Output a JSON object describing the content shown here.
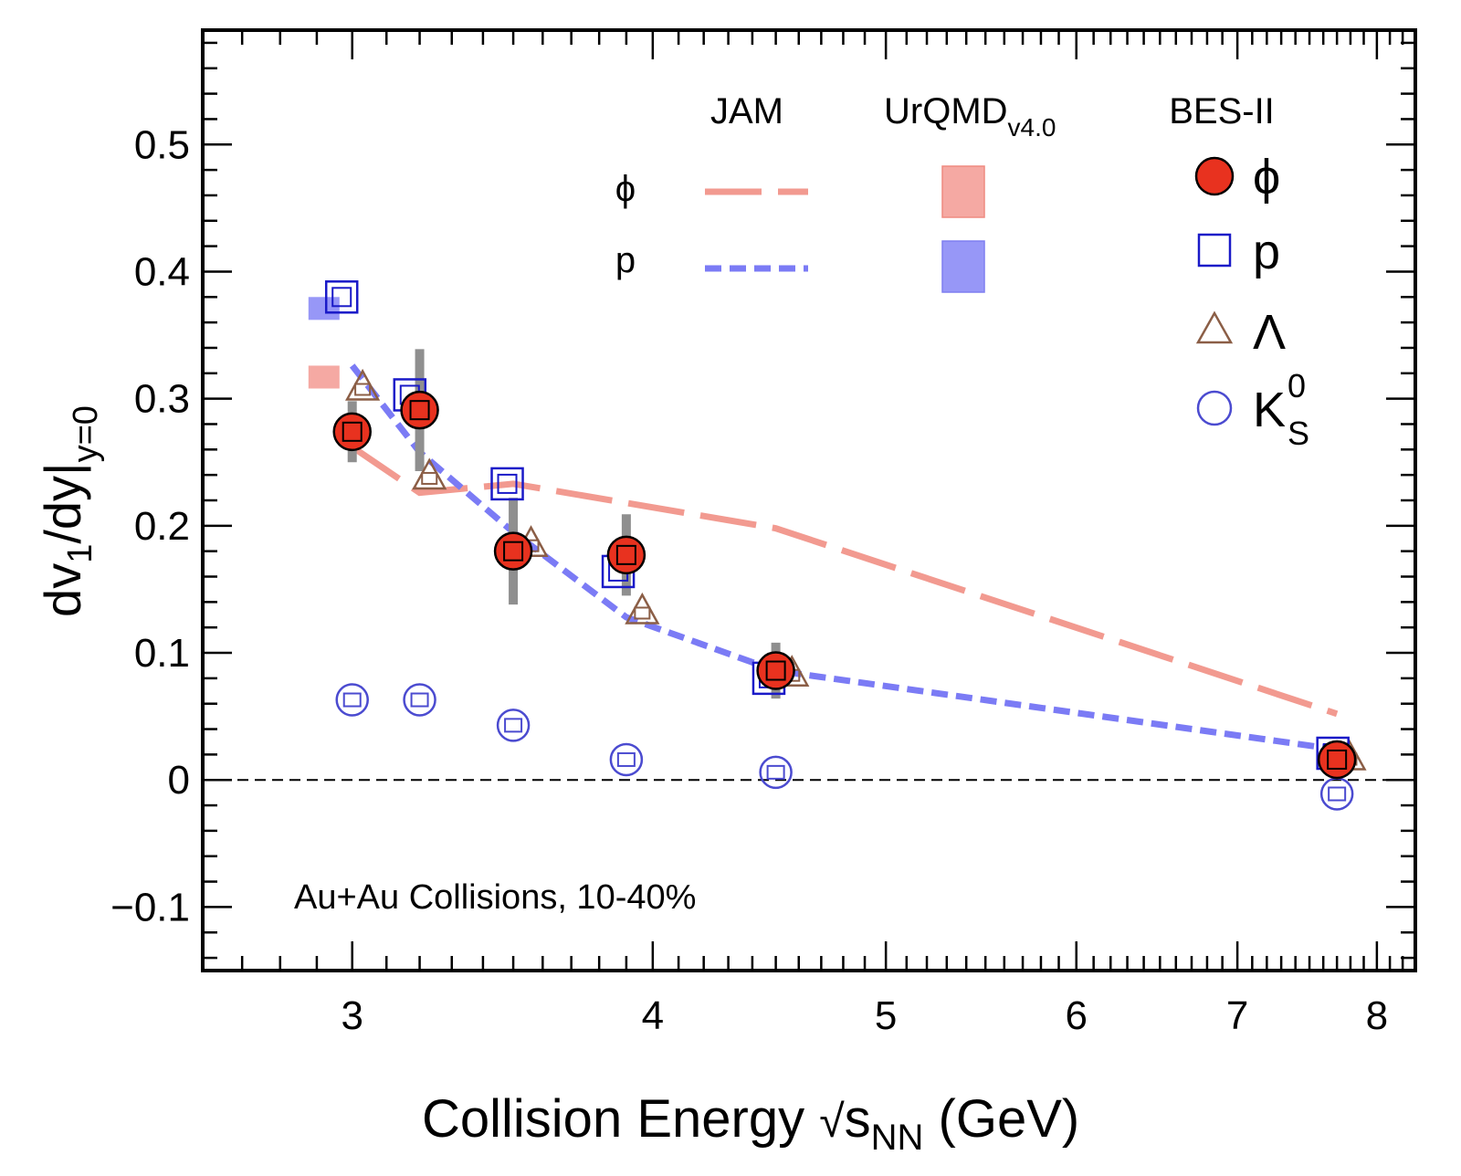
{
  "chart_data": {
    "type": "scatter",
    "title": "",
    "annotation": "Au+Au Collisions, 10-40%",
    "xlabel": {
      "main": "Collision Energy ",
      "sqrt": "√",
      "var": "s",
      "sub": "NN",
      "unit": " (GeV)"
    },
    "ylabel": {
      "main": "dv",
      "sub1": "1",
      "mid": "/dy|",
      "sub2": "y=0"
    },
    "xscale": "log",
    "xlim": [
      2.6,
      8.3
    ],
    "ylim": [
      -0.15,
      0.59
    ],
    "xticks": [
      {
        "value": 3,
        "label": "3"
      },
      {
        "value": 4,
        "label": "4"
      },
      {
        "value": 5,
        "label": "5"
      },
      {
        "value": 6,
        "label": "6"
      },
      {
        "value": 7,
        "label": "7"
      },
      {
        "value": 8,
        "label": "8"
      }
    ],
    "yticks": [
      {
        "value": -0.1,
        "label": "−0.1"
      },
      {
        "value": 0,
        "label": "0"
      },
      {
        "value": 0.1,
        "label": "0.1"
      },
      {
        "value": 0.2,
        "label": "0.2"
      },
      {
        "value": 0.3,
        "label": "0.3"
      },
      {
        "value": 0.4,
        "label": "0.4"
      },
      {
        "value": 0.5,
        "label": "0.5"
      }
    ],
    "zero_line": true,
    "grid": false,
    "legend": {
      "placement": "top-right",
      "headers": {
        "jam": "JAM",
        "urqmd": "UrQMD",
        "urqmd_sub": "v4.0",
        "bes": "BES-II"
      },
      "rows": {
        "phi": "ϕ",
        "p": "p"
      },
      "bes_items": [
        {
          "marker": "filled-circle",
          "label": "ϕ"
        },
        {
          "marker": "open-square",
          "label": "p"
        },
        {
          "marker": "open-triangle",
          "label": "Λ"
        },
        {
          "marker": "open-circle",
          "label": "K",
          "sub": "S",
          "sup": "0"
        }
      ]
    },
    "colors": {
      "phi": "#e8321f",
      "proton": "#1a1ac8",
      "lambda": "#8b5e46",
      "k0s": "#4b4bd0",
      "jam_phi": "#f29a90",
      "jam_p": "#7b7bf5",
      "urqmd_phi": "#f5a9a3",
      "urqmd_p": "#9797f7",
      "syst_phi": "#8f8f8f"
    },
    "series": [
      {
        "name": "ϕ",
        "source": "BES-II",
        "points": [
          {
            "x": 3.0,
            "y": 0.274,
            "syst": 0.024
          },
          {
            "x": 3.2,
            "y": 0.291,
            "syst": 0.048
          },
          {
            "x": 3.5,
            "y": 0.18,
            "syst": 0.042
          },
          {
            "x": 3.9,
            "y": 0.177,
            "syst": 0.032
          },
          {
            "x": 4.5,
            "y": 0.086,
            "syst": 0.022
          },
          {
            "x": 7.7,
            "y": 0.016,
            "syst": 0.0
          }
        ]
      },
      {
        "name": "p",
        "source": "BES-II",
        "points": [
          {
            "x": 2.97,
            "y": 0.38
          },
          {
            "x": 3.17,
            "y": 0.303
          },
          {
            "x": 3.48,
            "y": 0.233
          },
          {
            "x": 3.87,
            "y": 0.164
          },
          {
            "x": 4.47,
            "y": 0.08
          },
          {
            "x": 7.67,
            "y": 0.021
          }
        ]
      },
      {
        "name": "Λ",
        "source": "BES-II",
        "points": [
          {
            "x": 3.03,
            "y": 0.308
          },
          {
            "x": 3.23,
            "y": 0.238
          },
          {
            "x": 3.56,
            "y": 0.185
          },
          {
            "x": 3.96,
            "y": 0.132
          },
          {
            "x": 4.57,
            "y": 0.083
          },
          {
            "x": 7.79,
            "y": 0.017
          }
        ]
      },
      {
        "name": "K",
        "source": "BES-II",
        "points": [
          {
            "x": 3.0,
            "y": 0.063
          },
          {
            "x": 3.2,
            "y": 0.063
          },
          {
            "x": 3.5,
            "y": 0.043
          },
          {
            "x": 3.9,
            "y": 0.016
          },
          {
            "x": 4.5,
            "y": 0.006
          },
          {
            "x": 7.7,
            "y": -0.011
          }
        ]
      },
      {
        "name": "ϕ",
        "source": "JAM",
        "style": "long-dash",
        "points": [
          {
            "x": 3.0,
            "y": 0.262
          },
          {
            "x": 3.2,
            "y": 0.226
          },
          {
            "x": 3.5,
            "y": 0.233
          },
          {
            "x": 3.9,
            "y": 0.218
          },
          {
            "x": 4.5,
            "y": 0.198
          },
          {
            "x": 7.7,
            "y": 0.052
          }
        ]
      },
      {
        "name": "p",
        "source": "JAM",
        "style": "short-dash",
        "points": [
          {
            "x": 3.0,
            "y": 0.326
          },
          {
            "x": 3.2,
            "y": 0.258
          },
          {
            "x": 3.5,
            "y": 0.195
          },
          {
            "x": 3.9,
            "y": 0.128
          },
          {
            "x": 4.5,
            "y": 0.086
          },
          {
            "x": 7.7,
            "y": 0.024
          }
        ]
      },
      {
        "name": "ϕ",
        "source": "UrQMD v4.0",
        "style": "band",
        "points": [
          {
            "x": 2.92,
            "y": 0.317,
            "half_height": 0.009
          }
        ]
      },
      {
        "name": "p",
        "source": "UrQMD v4.0",
        "style": "band",
        "points": [
          {
            "x": 2.92,
            "y": 0.371,
            "half_height": 0.009
          }
        ]
      }
    ]
  }
}
